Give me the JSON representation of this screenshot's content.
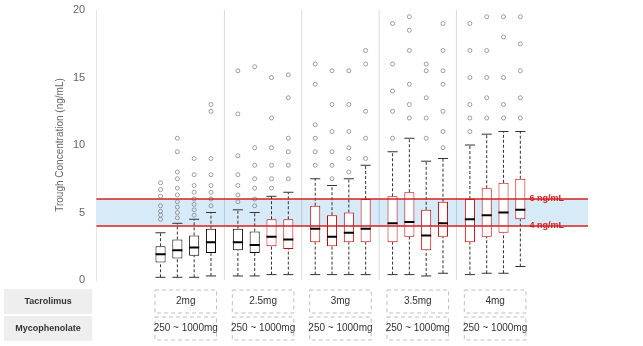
{
  "chart_data": {
    "type": "box",
    "y_label": "Trough Concentration (ng/mL)",
    "categories": [
      null,
      null,
      null,
      null,
      null,
      null,
      null,
      null,
      null,
      null,
      null,
      null,
      null,
      null,
      null,
      null,
      null,
      null,
      null,
      null
    ],
    "boxes": [
      {
        "q1": 1.3,
        "median": 1.9,
        "q3": 2.5,
        "whislo": 0.2,
        "whishi": 3.5,
        "fliers": [
          4.5,
          4.8,
          5.1,
          5.5,
          6.2,
          6.7,
          7.2
        ]
      },
      {
        "q1": 1.6,
        "median": 2.2,
        "q3": 3.0,
        "whislo": 0.2,
        "whishi": 4.2,
        "fliers": [
          4.6,
          5.0,
          5.4,
          5.8,
          6.3,
          6.8,
          7.5,
          8.0,
          9.5,
          10.5
        ]
      },
      {
        "q1": 1.8,
        "median": 2.4,
        "q3": 3.3,
        "whislo": 0.2,
        "whishi": 4.5,
        "fliers": [
          4.8,
          5.2,
          5.6,
          6.0,
          6.5,
          7.0,
          7.8,
          9.0
        ]
      },
      {
        "q1": 2.0,
        "median": 2.8,
        "q3": 3.8,
        "whislo": 0.3,
        "whishi": 5.0,
        "fliers": [
          5.5,
          6.0,
          6.5,
          7.0,
          7.8,
          9.0,
          12.5,
          13.0
        ]
      },
      {
        "q1": 2.2,
        "median": 2.8,
        "q3": 3.8,
        "whislo": 0.3,
        "whishi": 5.2,
        "fliers": [
          5.8,
          6.3,
          7.0,
          7.8,
          9.2,
          12.3,
          15.5
        ]
      },
      {
        "q1": 2.0,
        "median": 2.6,
        "q3": 3.6,
        "whislo": 0.3,
        "whishi": 5.0,
        "fliers": [
          5.5,
          6.0,
          6.8,
          7.5,
          8.5,
          9.8,
          15.8
        ]
      },
      {
        "q1": 2.5,
        "median": 3.2,
        "q3": 4.5,
        "whislo": 0.4,
        "whishi": 6.2,
        "fliers": [
          6.8,
          7.5,
          8.5,
          9.8,
          12.0,
          15.0
        ]
      },
      {
        "q1": 2.3,
        "median": 3.0,
        "q3": 4.5,
        "whislo": 0.4,
        "whishi": 6.5,
        "fliers": [
          7.5,
          8.5,
          9.5,
          10.5,
          13.5,
          15.2
        ]
      },
      {
        "q1": 2.8,
        "median": 3.8,
        "q3": 5.5,
        "whislo": 0.4,
        "whishi": 7.5,
        "fliers": [
          8.5,
          9.5,
          10.5,
          11.5,
          14.5,
          16.0
        ]
      },
      {
        "q1": 2.5,
        "median": 3.2,
        "q3": 4.8,
        "whislo": 0.4,
        "whishi": 7.0,
        "fliers": [
          7.5,
          8.5,
          9.5,
          11.0,
          13.0,
          15.5
        ]
      },
      {
        "q1": 2.8,
        "median": 3.5,
        "q3": 5.0,
        "whislo": 0.4,
        "whishi": 7.5,
        "fliers": [
          8.0,
          9.0,
          9.8,
          11.0,
          13.0,
          15.5
        ]
      },
      {
        "q1": 2.8,
        "median": 3.8,
        "q3": 6.0,
        "whislo": 0.4,
        "whishi": 8.5,
        "fliers": [
          9.0,
          10.5,
          12.5,
          16.0,
          17.0
        ]
      },
      {
        "q1": 2.8,
        "median": 4.2,
        "q3": 6.2,
        "whislo": 0.4,
        "whishi": 9.5,
        "fliers": [
          10.5,
          12.5,
          14.0,
          16.0,
          19.0
        ]
      },
      {
        "q1": 3.2,
        "median": 4.3,
        "q3": 6.5,
        "whislo": 0.4,
        "whishi": 10.5,
        "fliers": [
          12.0,
          13.0,
          14.5,
          17.0,
          18.5,
          19.5
        ]
      },
      {
        "q1": 2.2,
        "median": 3.3,
        "q3": 5.2,
        "whislo": 0.3,
        "whishi": 8.8,
        "fliers": [
          10.5,
          12.0,
          13.5,
          15.5,
          16.0
        ]
      },
      {
        "q1": 3.2,
        "median": 4.2,
        "q3": 5.8,
        "whislo": 0.5,
        "whishi": 9.0,
        "fliers": [
          9.8,
          11.0,
          12.5,
          14.5,
          15.5,
          17.0,
          19.0
        ]
      },
      {
        "q1": 2.8,
        "median": 4.5,
        "q3": 6.0,
        "whislo": 0.4,
        "whishi": 10.0,
        "fliers": [
          11.0,
          12.0,
          13.0,
          15.0,
          17.0,
          19.0
        ]
      },
      {
        "q1": 3.2,
        "median": 4.8,
        "q3": 6.8,
        "whislo": 0.5,
        "whishi": 10.8,
        "fliers": [
          12.0,
          13.5,
          15.0,
          17.0,
          19.5
        ]
      },
      {
        "q1": 3.5,
        "median": 5.0,
        "q3": 7.2,
        "whislo": 0.5,
        "whishi": 11.0,
        "fliers": [
          12.0,
          13.0,
          15.0,
          18.0,
          19.5
        ]
      },
      {
        "q1": 4.5,
        "median": 5.2,
        "q3": 7.5,
        "whislo": 1.0,
        "whishi": 11.0,
        "fliers": [
          12.0,
          13.5,
          15.5,
          17.5,
          19.5
        ]
      }
    ],
    "colors": [
      "#000000",
      "#000000",
      "#000000",
      "#000000",
      "#000000",
      "#000000",
      "#cc0000",
      "#cc0000",
      "#cc0000",
      "#cc0000",
      "#cc0000",
      "#cc0000",
      "#cc0000",
      "#cc0000",
      "#cc0000",
      "#cc0000",
      "#cc0000",
      "#cc0000",
      "#cc0000",
      "#cc0000"
    ],
    "ylim": [
      0,
      20
    ],
    "yticks": [
      0,
      5,
      10,
      15,
      20
    ],
    "grid": false,
    "tick_labels": "y",
    "ref_lines": [
      {
        "y": 6,
        "color": "#d42020",
        "label": "6 ng/mL"
      },
      {
        "y": 4,
        "color": "#d42020",
        "label": "4 ng/mL"
      }
    ],
    "shaded_band": {
      "from": 4,
      "to": 6,
      "color": "#d6eaf8"
    },
    "table": {
      "rows": [
        {
          "label": "Tacrolimus",
          "cells": [
            "2mg",
            "2.5mg",
            "3mg",
            "3.5mg",
            "4mg"
          ]
        },
        {
          "label": "Mycophenolate",
          "cells": [
            "250 ~ 1000mg",
            "250 ~ 1000mg",
            "250 ~ 1000mg",
            "250 ~ 1000mg",
            "250 ~ 1000mg"
          ]
        }
      ]
    }
  }
}
